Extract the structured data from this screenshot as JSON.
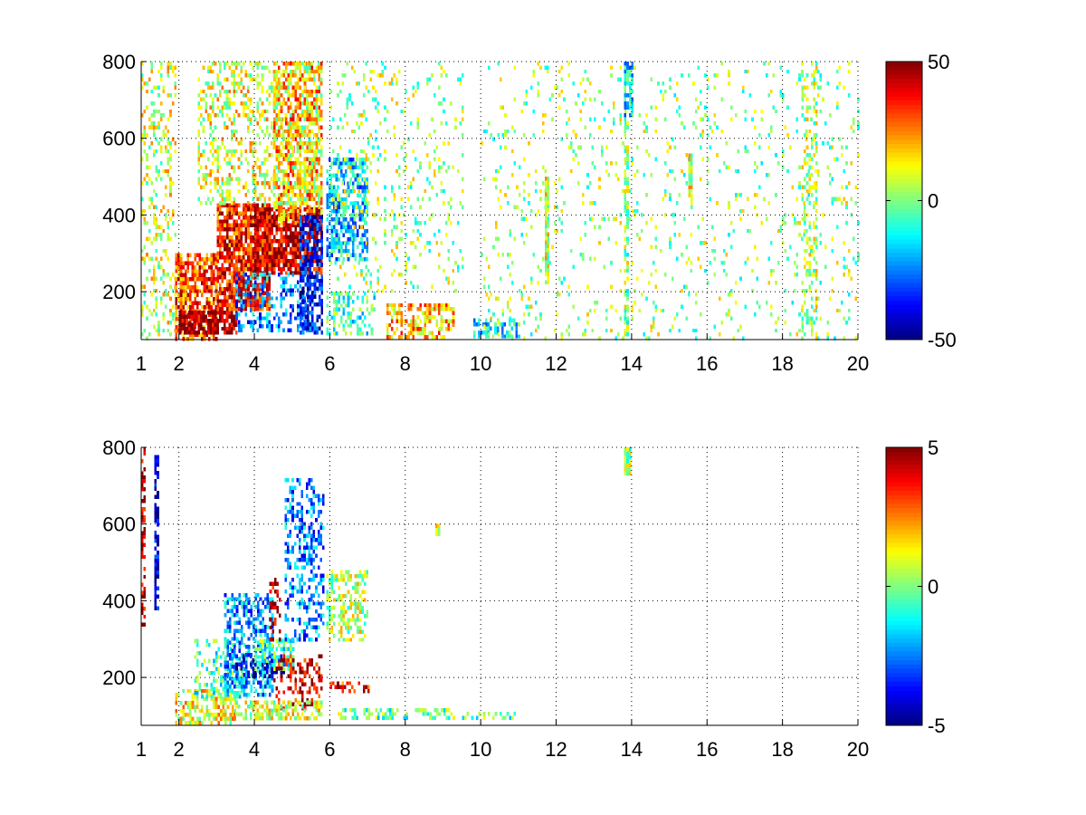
{
  "figure": {
    "background": "#ffffff"
  },
  "chart_data": [
    {
      "type": "heatmap",
      "title": "",
      "xlabel": "",
      "ylabel": "",
      "xlim": [
        1,
        20
      ],
      "ylim": [
        75,
        800
      ],
      "xticks": [
        1,
        2,
        4,
        6,
        8,
        10,
        12,
        14,
        16,
        18,
        20
      ],
      "yticks": [
        200,
        400,
        600,
        800
      ],
      "grid": true,
      "colormap": "jet",
      "colorbar": {
        "range": [
          -50,
          50
        ],
        "ticks": [
          50,
          0,
          -50
        ]
      },
      "regions": [
        {
          "x": [
            1.0,
            1.9
          ],
          "y": [
            80,
            800
          ],
          "value": 8,
          "density": 0.25
        },
        {
          "x": [
            1.9,
            3.0
          ],
          "y": [
            80,
            300
          ],
          "value": 30,
          "density": 0.7
        },
        {
          "x": [
            2.0,
            3.5
          ],
          "y": [
            90,
            150
          ],
          "value": 48,
          "density": 0.85
        },
        {
          "x": [
            3.0,
            4.4
          ],
          "y": [
            150,
            430
          ],
          "value": 35,
          "density": 0.8
        },
        {
          "x": [
            4.0,
            5.8
          ],
          "y": [
            250,
            420
          ],
          "value": 42,
          "density": 0.8
        },
        {
          "x": [
            4.5,
            5.8
          ],
          "y": [
            380,
            800
          ],
          "value": 22,
          "density": 0.55
        },
        {
          "x": [
            3.5,
            5.5
          ],
          "y": [
            100,
            250
          ],
          "value": -25,
          "density": 0.4
        },
        {
          "x": [
            5.2,
            5.8
          ],
          "y": [
            90,
            400
          ],
          "value": -38,
          "density": 0.6
        },
        {
          "x": [
            2.5,
            5.8
          ],
          "y": [
            430,
            800
          ],
          "value": 10,
          "density": 0.35
        },
        {
          "x": [
            5.9,
            7.0
          ],
          "y": [
            290,
            550
          ],
          "value": -18,
          "density": 0.6
        },
        {
          "x": [
            5.9,
            7.2
          ],
          "y": [
            90,
            200
          ],
          "value": -8,
          "density": 0.4
        },
        {
          "x": [
            7.5,
            9.3
          ],
          "y": [
            85,
            170
          ],
          "value": 20,
          "density": 0.55
        },
        {
          "x": [
            6.0,
            9.5
          ],
          "y": [
            200,
            800
          ],
          "value": 3,
          "density": 0.12
        },
        {
          "x": [
            9.8,
            11.0
          ],
          "y": [
            85,
            130
          ],
          "value": -12,
          "density": 0.5
        },
        {
          "x": [
            10.0,
            20.0
          ],
          "y": [
            80,
            800
          ],
          "value": 2,
          "density": 0.08
        },
        {
          "x": [
            11.7,
            11.8
          ],
          "y": [
            220,
            500
          ],
          "value": 8,
          "density": 0.9
        },
        {
          "x": [
            13.8,
            13.9
          ],
          "y": [
            90,
            800
          ],
          "value": 2,
          "density": 0.7
        },
        {
          "x": [
            13.8,
            14.0
          ],
          "y": [
            660,
            800
          ],
          "value": -15,
          "density": 0.7
        },
        {
          "x": [
            15.5,
            15.6
          ],
          "y": [
            420,
            560
          ],
          "value": 10,
          "density": 0.9
        },
        {
          "x": [
            18.5,
            18.9
          ],
          "y": [
            80,
            800
          ],
          "value": 5,
          "density": 0.35
        }
      ]
    },
    {
      "type": "heatmap",
      "title": "",
      "xlabel": "",
      "ylabel": "",
      "xlim": [
        1,
        20
      ],
      "ylim": [
        75,
        800
      ],
      "xticks": [
        1,
        2,
        4,
        6,
        8,
        10,
        12,
        14,
        16,
        18,
        20
      ],
      "yticks": [
        200,
        400,
        600,
        800
      ],
      "grid": true,
      "colormap": "jet",
      "colorbar": {
        "range": [
          -5,
          5
        ],
        "ticks": [
          5,
          0,
          -5
        ]
      },
      "regions": [
        {
          "x": [
            1.0,
            1.1
          ],
          "y": [
            340,
            800
          ],
          "value": 4.5,
          "density": 0.6
        },
        {
          "x": [
            1.35,
            1.42
          ],
          "y": [
            380,
            780
          ],
          "value": -4.5,
          "density": 0.7
        },
        {
          "x": [
            1.9,
            3.5
          ],
          "y": [
            80,
            170
          ],
          "value": 1.2,
          "density": 0.6
        },
        {
          "x": [
            2.4,
            3.8
          ],
          "y": [
            150,
            300
          ],
          "value": -0.5,
          "density": 0.35
        },
        {
          "x": [
            3.2,
            4.5
          ],
          "y": [
            150,
            420
          ],
          "value": -2.2,
          "density": 0.55
        },
        {
          "x": [
            3.5,
            4.8
          ],
          "y": [
            200,
            260
          ],
          "value": -4.6,
          "density": 0.5
        },
        {
          "x": [
            4.0,
            5.0
          ],
          "y": [
            220,
            300
          ],
          "value": -0.5,
          "density": 0.6
        },
        {
          "x": [
            4.4,
            4.7
          ],
          "y": [
            300,
            460
          ],
          "value": 4.5,
          "density": 0.3
        },
        {
          "x": [
            4.5,
            5.8
          ],
          "y": [
            120,
            260
          ],
          "value": 4.2,
          "density": 0.35
        },
        {
          "x": [
            4.8,
            5.8
          ],
          "y": [
            300,
            720
          ],
          "value": -2.5,
          "density": 0.4
        },
        {
          "x": [
            3.5,
            5.8
          ],
          "y": [
            90,
            140
          ],
          "value": 0.8,
          "density": 0.6
        },
        {
          "x": [
            5.9,
            7.0
          ],
          "y": [
            300,
            480
          ],
          "value": 0.5,
          "density": 0.45
        },
        {
          "x": [
            6.0,
            7.0
          ],
          "y": [
            160,
            190
          ],
          "value": 3.5,
          "density": 0.4
        },
        {
          "x": [
            6.2,
            9.3
          ],
          "y": [
            90,
            120
          ],
          "value": -0.3,
          "density": 0.45
        },
        {
          "x": [
            9.5,
            11.0
          ],
          "y": [
            90,
            110
          ],
          "value": -0.3,
          "density": 0.45
        },
        {
          "x": [
            13.8,
            13.95
          ],
          "y": [
            730,
            800
          ],
          "value": 0.3,
          "density": 0.8
        },
        {
          "x": [
            8.8,
            8.9
          ],
          "y": [
            570,
            600
          ],
          "value": 1.0,
          "density": 0.8
        }
      ]
    }
  ]
}
